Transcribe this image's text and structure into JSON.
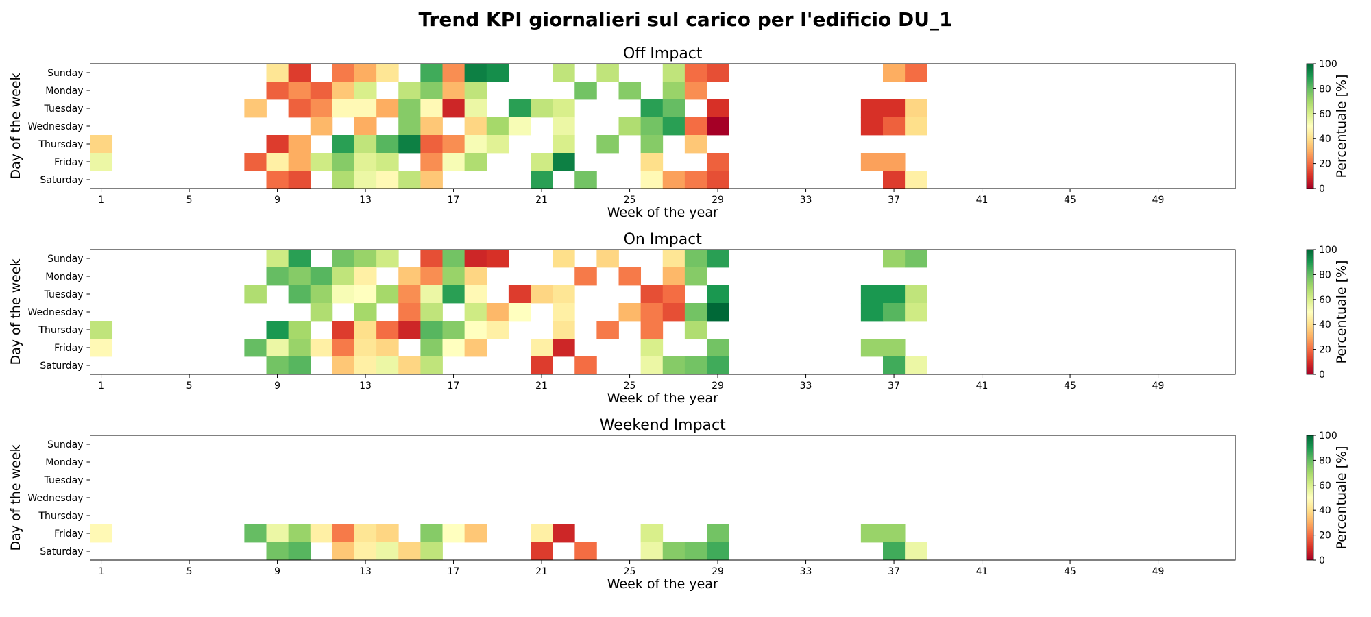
{
  "suptitle": "Trend KPI giornalieri sul carico per l'edificio DU_1",
  "colormap": [
    "#a50026",
    "#d73027",
    "#f46d43",
    "#fdae61",
    "#fee08b",
    "#ffffbf",
    "#d9ef8b",
    "#a6d96a",
    "#66bd63",
    "#1a9850",
    "#006837"
  ],
  "chart_data": [
    {
      "type": "heatmap",
      "title": "Off Impact",
      "xlabel": "Week of the year",
      "ylabel": "Day of the week",
      "colorbar_label": "Percentuale [%]",
      "vmin": 0,
      "vmax": 100,
      "colorbar_ticks": [
        0,
        20,
        40,
        60,
        80,
        100
      ],
      "days": [
        "Sunday",
        "Monday",
        "Tuesday",
        "Wednesday",
        "Thursday",
        "Friday",
        "Saturday"
      ],
      "weeks_range": [
        1,
        52
      ],
      "x_ticks": [
        1,
        5,
        9,
        13,
        17,
        21,
        25,
        29,
        33,
        37,
        41,
        45,
        49
      ],
      "values": {
        "Sunday": {
          "9": 42,
          "10": 12,
          "12": 22,
          "13": 30,
          "14": 42,
          "16": 85,
          "17": 25,
          "18": 95,
          "19": 92,
          "22": 65,
          "24": 65,
          "27": 65,
          "28": 20,
          "29": 15,
          "37": 30,
          "38": 20
        },
        "Monday": {
          "9": 18,
          "10": 25,
          "11": 18,
          "12": 35,
          "13": 60,
          "15": 65,
          "16": 75,
          "17": 32,
          "18": 65,
          "23": 78,
          "25": 75,
          "27": 72,
          "28": 25
        },
        "Tuesday": {
          "8": 35,
          "10": 18,
          "11": 25,
          "12": 48,
          "13": 48,
          "14": 30,
          "15": 75,
          "16": 48,
          "17": 8,
          "18": 55,
          "20": 88,
          "21": 65,
          "22": 60,
          "26": 88,
          "27": 80,
          "29": 10,
          "36": 10,
          "37": 10,
          "38": 38
        },
        "Wednesday": {
          "11": 32,
          "13": 30,
          "15": 75,
          "16": 35,
          "18": 38,
          "19": 70,
          "20": 52,
          "22": 55,
          "25": 68,
          "26": 78,
          "27": 88,
          "28": 20,
          "29": 0,
          "36": 10,
          "37": 18,
          "38": 40
        },
        "Thursday": {
          "1": 38,
          "9": 12,
          "10": 30,
          "12": 88,
          "13": 65,
          "14": 82,
          "15": 95,
          "16": 18,
          "17": 25,
          "18": 52,
          "19": 58,
          "22": 60,
          "24": 75,
          "26": 75,
          "28": 35
        },
        "Friday": {
          "1": 55,
          "8": 18,
          "9": 45,
          "10": 30,
          "11": 62,
          "12": 75,
          "13": 58,
          "14": 62,
          "16": 25,
          "17": 52,
          "18": 68,
          "21": 62,
          "22": 95,
          "26": 40,
          "29": 18,
          "36": 28,
          "37": 28
        },
        "Saturday": {
          "9": 20,
          "10": 15,
          "12": 68,
          "13": 55,
          "14": 48,
          "15": 65,
          "16": 35,
          "21": 88,
          "23": 78,
          "26": 48,
          "27": 28,
          "28": 22,
          "29": 15,
          "37": 12,
          "38": 45
        }
      }
    },
    {
      "type": "heatmap",
      "title": "On Impact",
      "xlabel": "Week of the year",
      "ylabel": "Day of the week",
      "colorbar_label": "Percentuale [%]",
      "vmin": 0,
      "vmax": 100,
      "colorbar_ticks": [
        0,
        20,
        40,
        60,
        80,
        100
      ],
      "days": [
        "Sunday",
        "Monday",
        "Tuesday",
        "Wednesday",
        "Thursday",
        "Friday",
        "Saturday"
      ],
      "weeks_range": [
        1,
        52
      ],
      "x_ticks": [
        1,
        5,
        9,
        13,
        17,
        21,
        25,
        29,
        33,
        37,
        41,
        45,
        49
      ],
      "values": {
        "Sunday": {
          "9": 62,
          "10": 88,
          "12": 78,
          "13": 72,
          "14": 62,
          "16": 15,
          "17": 78,
          "18": 8,
          "19": 10,
          "22": 40,
          "24": 38,
          "27": 42,
          "28": 78,
          "29": 88,
          "37": 72,
          "38": 78
        },
        "Monday": {
          "9": 80,
          "10": 75,
          "11": 82,
          "12": 65,
          "13": 45,
          "15": 35,
          "16": 25,
          "17": 72,
          "18": 38,
          "23": 22,
          "25": 22,
          "27": 32,
          "28": 75
        },
        "Tuesday": {
          "8": 68,
          "10": 82,
          "11": 72,
          "12": 52,
          "13": 50,
          "14": 70,
          "15": 25,
          "16": 55,
          "17": 88,
          "18": 48,
          "20": 12,
          "21": 38,
          "22": 42,
          "26": 15,
          "27": 20,
          "29": 90,
          "36": 90,
          "37": 90,
          "38": 65
        },
        "Wednesday": {
          "11": 68,
          "13": 70,
          "15": 22,
          "16": 65,
          "18": 62,
          "19": 32,
          "20": 50,
          "22": 45,
          "25": 32,
          "26": 22,
          "27": 15,
          "28": 78,
          "29": 100,
          "36": 90,
          "37": 82,
          "38": 62
        },
        "Thursday": {
          "1": 65,
          "9": 90,
          "10": 70,
          "12": 12,
          "13": 40,
          "14": 20,
          "15": 8,
          "16": 82,
          "17": 75,
          "18": 50,
          "19": 45,
          "22": 42,
          "24": 22,
          "26": 22,
          "28": 68
        },
        "Friday": {
          "1": 48,
          "8": 80,
          "9": 55,
          "10": 72,
          "11": 45,
          "12": 22,
          "13": 42,
          "14": 38,
          "16": 75,
          "17": 50,
          "18": 35,
          "21": 45,
          "22": 8,
          "26": 60,
          "29": 78,
          "36": 72,
          "37": 72
        },
        "Saturday": {
          "9": 78,
          "10": 82,
          "12": 35,
          "13": 45,
          "14": 55,
          "15": 38,
          "16": 65,
          "21": 12,
          "23": 20,
          "26": 55,
          "27": 75,
          "28": 78,
          "29": 85,
          "37": 85,
          "38": 55
        }
      }
    },
    {
      "type": "heatmap",
      "title": "Weekend Impact",
      "xlabel": "Week of the year",
      "ylabel": "Day of the week",
      "colorbar_label": "Percentuale [%]",
      "vmin": 0,
      "vmax": 100,
      "colorbar_ticks": [
        0,
        20,
        40,
        60,
        80,
        100
      ],
      "days": [
        "Sunday",
        "Monday",
        "Tuesday",
        "Wednesday",
        "Thursday",
        "Friday",
        "Saturday"
      ],
      "weeks_range": [
        1,
        52
      ],
      "x_ticks": [
        1,
        5,
        9,
        13,
        17,
        21,
        25,
        29,
        33,
        37,
        41,
        45,
        49
      ],
      "values": {
        "Sunday": {},
        "Monday": {},
        "Tuesday": {},
        "Wednesday": {},
        "Thursday": {},
        "Friday": {
          "1": 48,
          "8": 80,
          "9": 55,
          "10": 72,
          "11": 45,
          "12": 22,
          "13": 42,
          "14": 38,
          "16": 75,
          "17": 50,
          "18": 35,
          "21": 45,
          "22": 8,
          "26": 60,
          "29": 78,
          "36": 72,
          "37": 72
        },
        "Saturday": {
          "9": 78,
          "10": 82,
          "12": 35,
          "13": 45,
          "14": 55,
          "15": 38,
          "16": 65,
          "21": 12,
          "23": 20,
          "26": 55,
          "27": 75,
          "28": 78,
          "29": 85,
          "37": 85,
          "38": 55
        }
      }
    }
  ]
}
